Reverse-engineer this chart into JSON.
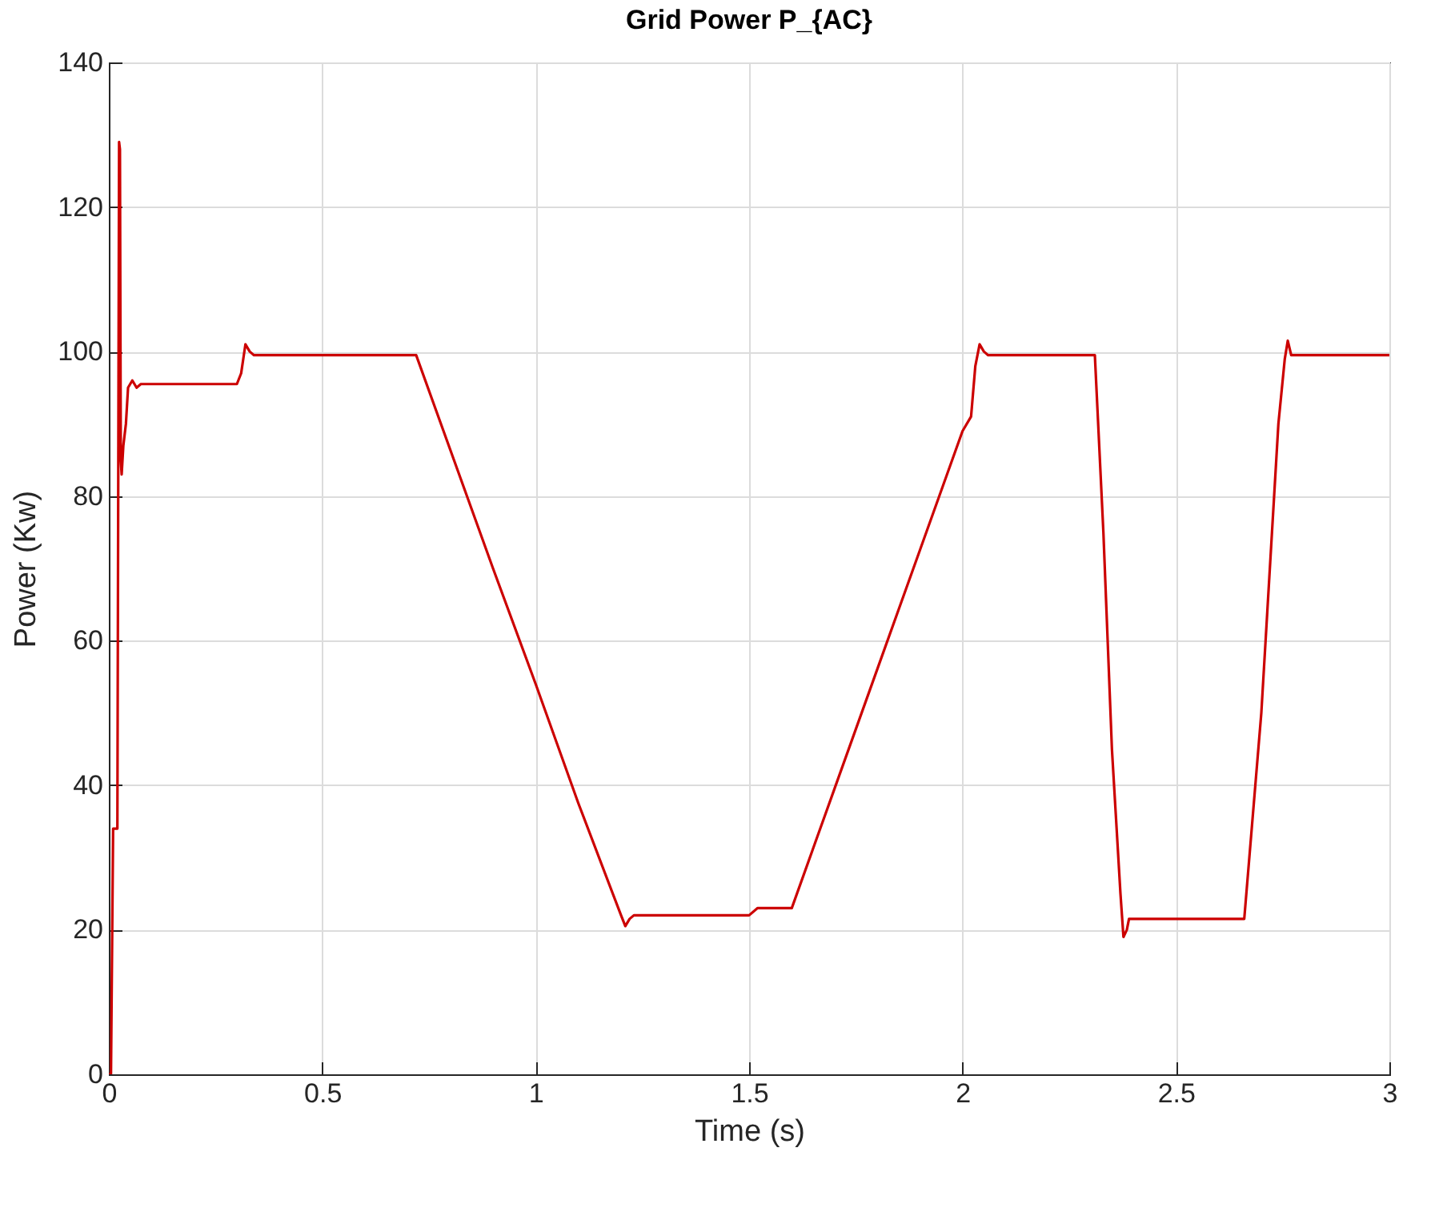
{
  "chart_data": {
    "type": "line",
    "title": "Grid Power P_{AC}",
    "xlabel": "Time (s)",
    "ylabel": "Power (Kw)",
    "xlim": [
      0,
      3
    ],
    "xticks": [
      0,
      0.5,
      1,
      1.5,
      2,
      2.5,
      3
    ],
    "ylim": [
      0,
      140
    ],
    "yticks": [
      0,
      20,
      40,
      60,
      80,
      100,
      120,
      140
    ],
    "grid": true,
    "marker": "none",
    "line_style": "solid",
    "series": [
      {
        "color": "#cc0000",
        "x": [
          0,
          0.005,
          0.01,
          0.02,
          0.024,
          0.026,
          0.028,
          0.03,
          0.034,
          0.04,
          0.045,
          0.055,
          0.065,
          0.075,
          0.1,
          0.3,
          0.31,
          0.32,
          0.33,
          0.34,
          0.5,
          0.72,
          0.9,
          1.0,
          1.1,
          1.2,
          1.21,
          1.22,
          1.23,
          1.5,
          1.52,
          1.6,
          1.7,
          1.8,
          1.9,
          2.0,
          2.02,
          2.03,
          2.04,
          2.05,
          2.06,
          2.31,
          2.33,
          2.35,
          2.37,
          2.377,
          2.385,
          2.39,
          2.5,
          2.66,
          2.7,
          2.74,
          2.755,
          2.762,
          2.77,
          3.0
        ],
        "values": [
          0,
          0,
          34,
          34,
          129,
          128,
          85,
          83,
          87,
          90,
          95,
          96,
          95,
          95.5,
          95.5,
          95.5,
          97,
          101,
          100,
          99.5,
          99.5,
          99.5,
          70,
          54,
          37.5,
          22,
          20.5,
          21.5,
          22,
          22,
          23,
          23,
          39.5,
          56,
          72.5,
          89,
          91,
          98,
          101,
          100,
          99.5,
          99.5,
          75,
          45,
          25,
          19,
          20,
          21.5,
          21.5,
          21.5,
          50,
          90,
          99,
          101.5,
          99.5,
          99.5
        ]
      }
    ]
  }
}
